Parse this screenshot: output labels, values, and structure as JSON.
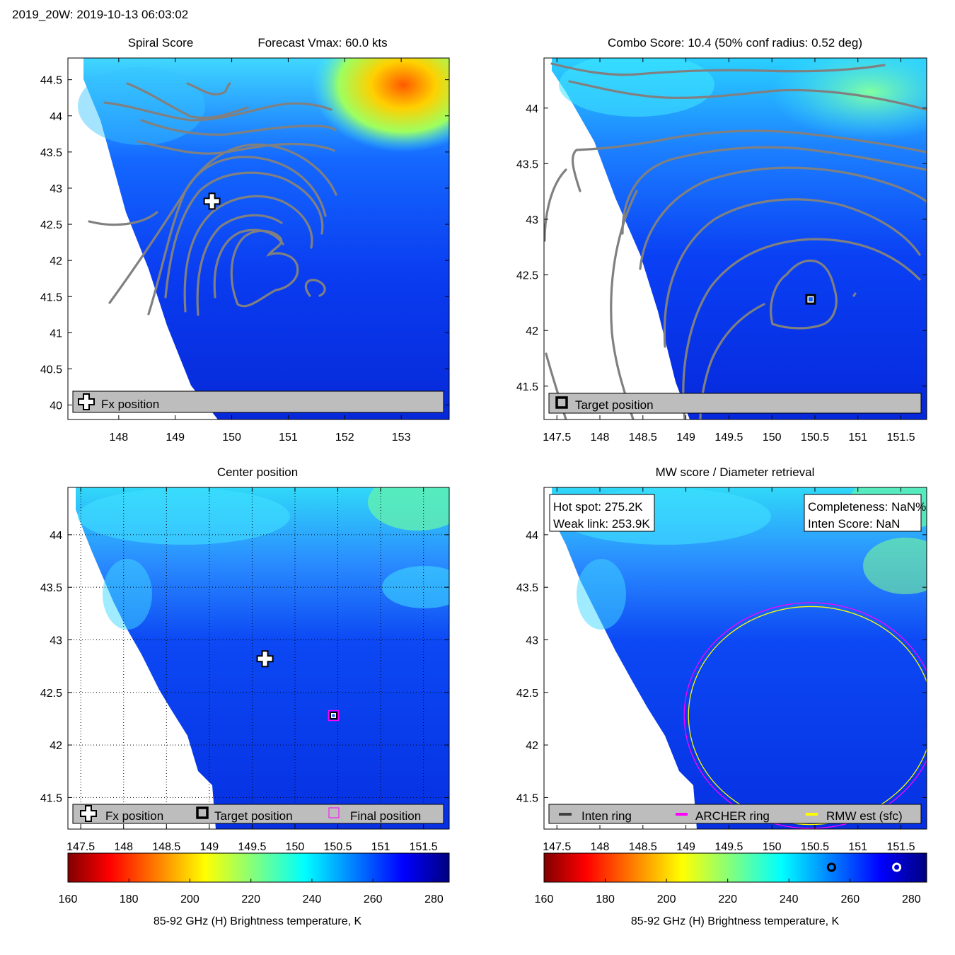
{
  "figure": {
    "header": "2019_20W: 2019-10-13 06:03:02"
  },
  "panels": {
    "spiral": {
      "title_left": "Spiral Score",
      "title_right": "Forecast Vmax: 60.0 kts",
      "legend": [
        "Fx position"
      ]
    },
    "combo": {
      "title": "Combo Score: 10.4  (50% conf radius: 0.52 deg)",
      "legend": [
        "Target position"
      ]
    },
    "center": {
      "title": "Center position",
      "legend": [
        "Fx position",
        "Target position",
        "Final position"
      ]
    },
    "mw": {
      "title": "MW score / Diameter retrieval",
      "box_left": [
        "Hot spot: 275.2K",
        "Weak link: 253.9K"
      ],
      "box_right": [
        "Completeness: NaN%",
        "Inten Score: NaN"
      ],
      "legend": [
        "Inten ring",
        "ARCHER ring",
        "RMW est (sfc)"
      ]
    }
  },
  "colors": {
    "contour": "#808080",
    "inten_ring": "#404040",
    "archer_ring": "#ff00ff",
    "rmw_ring": "#ffff00",
    "legend_bg": "#bdbdbd",
    "missing": "#ffffff"
  },
  "colorbar": {
    "label": "85-92 GHz (H) Brightness temperature, K",
    "ticks": [
      160,
      180,
      200,
      220,
      240,
      260,
      280
    ],
    "range": [
      160,
      285
    ],
    "colormap": "jet"
  },
  "chart_data": [
    {
      "type": "heatmap",
      "id": "spiral",
      "x_ticks": [
        148,
        149,
        150,
        151,
        152,
        153
      ],
      "y_ticks": [
        40,
        40.5,
        41,
        41.5,
        42,
        42.5,
        43,
        43.5,
        44,
        44.5
      ],
      "xlim": [
        147.1,
        153.85
      ],
      "ylim": [
        39.8,
        44.8
      ],
      "markers": [
        {
          "kind": "fx-cross",
          "x": 149.65,
          "y": 42.82
        }
      ]
    },
    {
      "type": "heatmap",
      "id": "combo",
      "x_ticks": [
        147.5,
        148,
        148.5,
        149,
        149.5,
        150,
        150.5,
        151,
        151.5
      ],
      "x_tick_labels": [
        "147.5",
        "148",
        "148.5",
        "149",
        "149.5",
        "150",
        "150.5",
        "151",
        "151.5"
      ],
      "y_ticks": [
        41.5,
        42,
        42.5,
        43,
        43.5,
        44
      ],
      "xlim": [
        147.35,
        151.8
      ],
      "ylim": [
        41.2,
        44.45
      ],
      "markers": [
        {
          "kind": "target-square",
          "x": 150.45,
          "y": 42.28
        }
      ]
    },
    {
      "type": "heatmap",
      "id": "center",
      "x_ticks": [
        147.5,
        148,
        148.5,
        149,
        149.5,
        150,
        150.5,
        151,
        151.5
      ],
      "x_tick_labels": [
        "147.5",
        "148",
        "148.5",
        "149",
        "149.5",
        "150",
        "150.5",
        "151",
        "151.5"
      ],
      "y_ticks": [
        41.5,
        42,
        42.5,
        43,
        43.5,
        44
      ],
      "xlim": [
        147.35,
        151.8
      ],
      "ylim": [
        41.2,
        44.45
      ],
      "grid": true,
      "markers": [
        {
          "kind": "fx-cross",
          "x": 149.65,
          "y": 42.82
        },
        {
          "kind": "target-square",
          "x": 150.45,
          "y": 42.28
        },
        {
          "kind": "final-square",
          "x": 150.45,
          "y": 42.28
        }
      ]
    },
    {
      "type": "heatmap",
      "id": "mw",
      "x_ticks": [
        147.5,
        148,
        148.5,
        149,
        149.5,
        150,
        150.5,
        151,
        151.5
      ],
      "x_tick_labels": [
        "147.5",
        "148",
        "148.5",
        "149",
        "149.5",
        "150",
        "150.5",
        "151",
        "151.5"
      ],
      "y_ticks": [
        41.5,
        42,
        42.5,
        43,
        43.5,
        44
      ],
      "xlim": [
        147.35,
        151.8
      ],
      "ylim": [
        41.2,
        44.45
      ],
      "rings": [
        {
          "kind": "archer",
          "cx": 150.45,
          "cy": 42.28,
          "r": 1.47
        },
        {
          "kind": "rmw",
          "cx": 150.45,
          "cy": 42.28,
          "r": 1.42
        }
      ],
      "colorbar_markers": [
        {
          "kind": "weak-link",
          "value": 253.9
        },
        {
          "kind": "hot-spot",
          "value": 275.2
        }
      ]
    }
  ]
}
